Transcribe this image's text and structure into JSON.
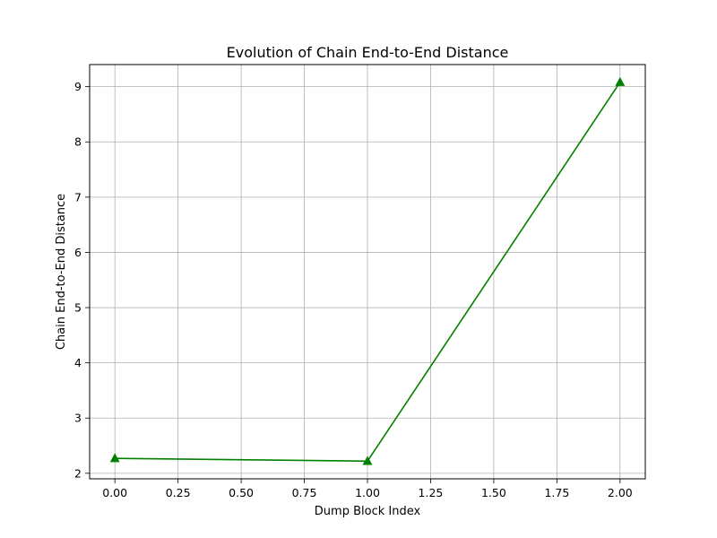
{
  "chart_data": {
    "type": "line",
    "title": "Evolution of Chain End-to-End Distance",
    "xlabel": "Dump Block Index",
    "ylabel": "Chain End-to-End Distance",
    "xlim": [
      -0.1,
      2.1
    ],
    "ylim": [
      1.9,
      9.4
    ],
    "x_ticks": [
      0.0,
      0.25,
      0.5,
      0.75,
      1.0,
      1.25,
      1.5,
      1.75,
      2.0
    ],
    "x_tick_labels": [
      "0.00",
      "0.25",
      "0.50",
      "0.75",
      "1.00",
      "1.25",
      "1.50",
      "1.75",
      "2.00"
    ],
    "y_ticks": [
      2,
      3,
      4,
      5,
      6,
      7,
      8,
      9
    ],
    "y_tick_labels": [
      "2",
      "3",
      "4",
      "5",
      "6",
      "7",
      "8",
      "9"
    ],
    "grid": true,
    "series": [
      {
        "x": [
          0,
          1,
          2
        ],
        "values": [
          2.27,
          2.22,
          9.08
        ],
        "color": "#008000",
        "marker": "triangle-up"
      }
    ]
  }
}
